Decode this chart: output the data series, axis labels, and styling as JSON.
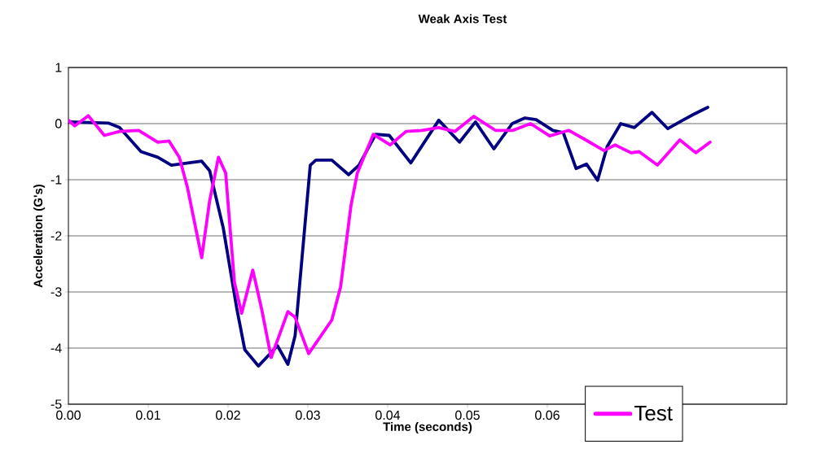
{
  "chart_data": {
    "type": "line",
    "title": "Weak Axis Test",
    "xlabel": "Time (seconds)",
    "ylabel": "Acceleration (G's)",
    "xlim": [
      0,
      0.09
    ],
    "ylim": [
      -5,
      1
    ],
    "xticks": [
      {
        "value": 0,
        "label": "0.00"
      },
      {
        "value": 0.01,
        "label": "0.01"
      },
      {
        "value": 0.02,
        "label": "0.02"
      },
      {
        "value": 0.03,
        "label": "0.03"
      },
      {
        "value": 0.04,
        "label": "0.04"
      },
      {
        "value": 0.05,
        "label": "0.05"
      },
      {
        "value": 0.06,
        "label": "0.06"
      }
    ],
    "yticks": [
      -5,
      -4,
      -3,
      -2,
      -1,
      0,
      1
    ],
    "grid": "y",
    "legend": "bottom right",
    "marker": "none",
    "line_style": "solid",
    "series": [
      {
        "color": "#000080",
        "x": [
          0,
          0.005,
          0.0064,
          0.0091,
          0.0112,
          0.0129,
          0.0167,
          0.0177,
          0.0194,
          0.0211,
          0.0221,
          0.0238,
          0.0262,
          0.0275,
          0.0284,
          0.0296,
          0.0303,
          0.031,
          0.033,
          0.0351,
          0.0364,
          0.0385,
          0.0402,
          0.0429,
          0.0464,
          0.049,
          0.051,
          0.0533,
          0.0556,
          0.0572,
          0.0586,
          0.0607,
          0.062,
          0.0636,
          0.0649,
          0.0663,
          0.0675,
          0.0692,
          0.0709,
          0.0731,
          0.0751,
          0.0771,
          0.0784,
          0.0801
        ],
        "values": [
          0.03,
          0.01,
          -0.07,
          -0.5,
          -0.6,
          -0.74,
          -0.67,
          -0.84,
          -1.86,
          -3.3,
          -4.03,
          -4.32,
          -3.96,
          -4.29,
          -3.78,
          -1.86,
          -0.74,
          -0.65,
          -0.65,
          -0.91,
          -0.74,
          -0.19,
          -0.21,
          -0.7,
          0.06,
          -0.33,
          0.03,
          -0.45,
          0,
          0.1,
          0.07,
          -0.12,
          -0.16,
          -0.8,
          -0.72,
          -1.01,
          -0.41,
          0,
          -0.07,
          0.2,
          -0.09,
          0.07,
          0.17,
          0.29
        ]
      },
      {
        "name": "Test",
        "color": "#ff00ff",
        "x": [
          0,
          0.0008,
          0.0025,
          0.0045,
          0.0064,
          0.0088,
          0.0112,
          0.0126,
          0.0139,
          0.0149,
          0.0167,
          0.0177,
          0.0188,
          0.0197,
          0.0208,
          0.0217,
          0.0231,
          0.0242,
          0.0254,
          0.0275,
          0.0284,
          0.0301,
          0.033,
          0.0341,
          0.0354,
          0.0362,
          0.0382,
          0.0403,
          0.0423,
          0.0443,
          0.0464,
          0.0484,
          0.0508,
          0.0535,
          0.0557,
          0.0579,
          0.0603,
          0.0627,
          0.0648,
          0.0671,
          0.0685,
          0.0705,
          0.0715,
          0.0738,
          0.0766,
          0.0786,
          0.0804
        ],
        "values": [
          0.06,
          -0.04,
          0.14,
          -0.21,
          -0.14,
          -0.12,
          -0.33,
          -0.31,
          -0.6,
          -1.13,
          -2.39,
          -1.37,
          -0.6,
          -0.88,
          -2.83,
          -3.38,
          -2.61,
          -3.3,
          -4.17,
          -3.35,
          -3.45,
          -4.1,
          -3.5,
          -2.91,
          -1.46,
          -0.88,
          -0.19,
          -0.38,
          -0.14,
          -0.12,
          -0.07,
          -0.14,
          0.13,
          -0.12,
          -0.12,
          0,
          -0.22,
          -0.12,
          -0.29,
          -0.48,
          -0.38,
          -0.52,
          -0.5,
          -0.74,
          -0.29,
          -0.52,
          -0.33
        ]
      }
    ]
  }
}
